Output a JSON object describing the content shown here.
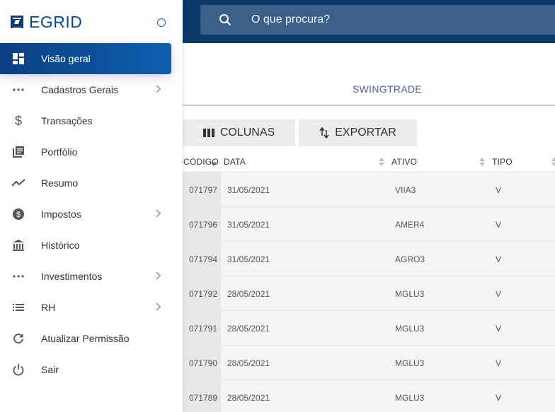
{
  "brand": {
    "name": "EGRID"
  },
  "sidebar": {
    "items": [
      {
        "label": "Visão geral",
        "icon": "dashboard-icon",
        "active": true,
        "has_children": false
      },
      {
        "label": "Cadastros Gerais",
        "icon": "more-horizontal-icon",
        "active": false,
        "has_children": true
      },
      {
        "label": "Transações",
        "icon": "dollar-icon",
        "active": false,
        "has_children": false
      },
      {
        "label": "Portfólio",
        "icon": "library-books-icon",
        "active": false,
        "has_children": false
      },
      {
        "label": "Resumo",
        "icon": "trending-line-icon",
        "active": false,
        "has_children": false
      },
      {
        "label": "Impostos",
        "icon": "dollar-circle-icon",
        "active": false,
        "has_children": true
      },
      {
        "label": "Histórico",
        "icon": "bank-icon",
        "active": false,
        "has_children": false
      },
      {
        "label": "Investimentos",
        "icon": "more-horizontal-icon",
        "active": false,
        "has_children": true
      },
      {
        "label": "RH",
        "icon": "list-icon",
        "active": false,
        "has_children": true
      },
      {
        "label": "Atualizar Permissão",
        "icon": "refresh-icon",
        "active": false,
        "has_children": false
      },
      {
        "label": "Sair",
        "icon": "power-icon",
        "active": false,
        "has_children": false
      }
    ]
  },
  "search": {
    "placeholder": "O que procura?"
  },
  "tabs": [
    {
      "label": "SWINGTRADE"
    }
  ],
  "toolbar": {
    "columns_label": "COLUNAS",
    "export_label": "EXPORTAR"
  },
  "table": {
    "headers": {
      "code": "CÓDIGO",
      "date": "DATA",
      "asset": "ATIVO",
      "type": "TIPO"
    },
    "rows": [
      {
        "code": "071797",
        "date": "31/05/2021",
        "asset": "VIIA3",
        "type": "V"
      },
      {
        "code": "071796",
        "date": "31/05/2021",
        "asset": "AMER4",
        "type": "V"
      },
      {
        "code": "071794",
        "date": "31/05/2021",
        "asset": "AGRO3",
        "type": "V"
      },
      {
        "code": "071792",
        "date": "28/05/2021",
        "asset": "MGLU3",
        "type": "V"
      },
      {
        "code": "071791",
        "date": "28/05/2021",
        "asset": "MGLU3",
        "type": "V"
      },
      {
        "code": "071790",
        "date": "28/05/2021",
        "asset": "MGLU3",
        "type": "V"
      },
      {
        "code": "071789",
        "date": "28/05/2021",
        "asset": "MGLU3",
        "type": "V"
      }
    ]
  },
  "colors": {
    "primary": "#0b3a6b",
    "accent": "#0f5fae",
    "tab": "#4a5fa8"
  }
}
